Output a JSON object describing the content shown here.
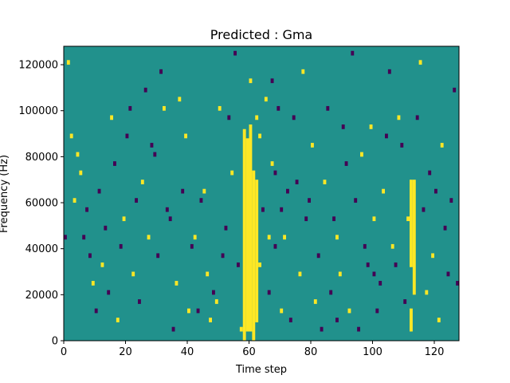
{
  "chart_data": {
    "type": "heatmap",
    "title": "Predicted : Gma",
    "xlabel": "Time step",
    "ylabel": "Frequency (Hz)",
    "xlim": [
      0,
      128
    ],
    "ylim": [
      0,
      128000
    ],
    "xticks": [
      0,
      20,
      40,
      60,
      80,
      100,
      120
    ],
    "yticks": [
      0,
      20000,
      40000,
      60000,
      80000,
      100000,
      120000
    ],
    "xtick_labels": [
      "0",
      "20",
      "40",
      "60",
      "80",
      "100",
      "120"
    ],
    "ytick_labels": [
      "0",
      "20000",
      "40000",
      "60000",
      "80000",
      "100000",
      "120000"
    ],
    "n_time_steps": 128,
    "n_freq_bins": 64,
    "background_value": 0,
    "values_legend": {
      "-1": "low",
      "0": "neutral",
      "1": "high"
    },
    "colormap": {
      "-1": "#440154",
      "0": "#21918c",
      "1": "#fde725"
    },
    "grid": false,
    "high_columns": [
      {
        "x": 58,
        "y0": 0,
        "y1": 92000
      },
      {
        "x": 59,
        "y0": 4000,
        "y1": 88000
      },
      {
        "x": 60,
        "y0": 4000,
        "y1": 94000
      },
      {
        "x": 61,
        "y0": 0,
        "y1": 74000
      },
      {
        "x": 62,
        "y0": 8000,
        "y1": 70000
      },
      {
        "x": 112,
        "y0": 32000,
        "y1": 70000
      },
      {
        "x": 113,
        "y0": 20000,
        "y1": 70000
      },
      {
        "x": 112,
        "y0": 4000,
        "y1": 14000
      }
    ],
    "cells": [
      {
        "x": 1,
        "y": 120000,
        "v": 1
      },
      {
        "x": 2,
        "y": 88000,
        "v": 1
      },
      {
        "x": 3,
        "y": 60000,
        "v": 1
      },
      {
        "x": 4,
        "y": 80000,
        "v": 1
      },
      {
        "x": 5,
        "y": 72000,
        "v": 1
      },
      {
        "x": 6,
        "y": 44000,
        "v": -1
      },
      {
        "x": 7,
        "y": 56000,
        "v": -1
      },
      {
        "x": 8,
        "y": 36000,
        "v": -1
      },
      {
        "x": 9,
        "y": 24000,
        "v": 1
      },
      {
        "x": 10,
        "y": 12000,
        "v": -1
      },
      {
        "x": 11,
        "y": 64000,
        "v": -1
      },
      {
        "x": 12,
        "y": 32000,
        "v": 1
      },
      {
        "x": 13,
        "y": 48000,
        "v": -1
      },
      {
        "x": 14,
        "y": 20000,
        "v": -1
      },
      {
        "x": 15,
        "y": 96000,
        "v": 1
      },
      {
        "x": 16,
        "y": 76000,
        "v": -1
      },
      {
        "x": 17,
        "y": 8000,
        "v": 1
      },
      {
        "x": 18,
        "y": 40000,
        "v": -1
      },
      {
        "x": 19,
        "y": 52000,
        "v": 1
      },
      {
        "x": 20,
        "y": 88000,
        "v": -1
      },
      {
        "x": 22,
        "y": 28000,
        "v": 1
      },
      {
        "x": 24,
        "y": 16000,
        "v": -1
      },
      {
        "x": 25,
        "y": 68000,
        "v": 1
      },
      {
        "x": 26,
        "y": 108000,
        "v": -1
      },
      {
        "x": 27,
        "y": 44000,
        "v": 1
      },
      {
        "x": 28,
        "y": 84000,
        "v": -1
      },
      {
        "x": 30,
        "y": 36000,
        "v": -1
      },
      {
        "x": 32,
        "y": 100000,
        "v": 1
      },
      {
        "x": 34,
        "y": 52000,
        "v": -1
      },
      {
        "x": 36,
        "y": 24000,
        "v": 1
      },
      {
        "x": 38,
        "y": 64000,
        "v": -1
      },
      {
        "x": 40,
        "y": 12000,
        "v": 1
      },
      {
        "x": 42,
        "y": 44000,
        "v": 1
      },
      {
        "x": 44,
        "y": 60000,
        "v": -1
      },
      {
        "x": 46,
        "y": 28000,
        "v": 1
      },
      {
        "x": 47,
        "y": 8000,
        "v": 1
      },
      {
        "x": 48,
        "y": 20000,
        "v": -1
      },
      {
        "x": 50,
        "y": 100000,
        "v": 1
      },
      {
        "x": 52,
        "y": 48000,
        "v": -1
      },
      {
        "x": 54,
        "y": 72000,
        "v": 1
      },
      {
        "x": 56,
        "y": 32000,
        "v": -1
      },
      {
        "x": 64,
        "y": 56000,
        "v": -1
      },
      {
        "x": 65,
        "y": 104000,
        "v": 1
      },
      {
        "x": 66,
        "y": 20000,
        "v": -1
      },
      {
        "x": 67,
        "y": 76000,
        "v": 1
      },
      {
        "x": 68,
        "y": 40000,
        "v": -1
      },
      {
        "x": 69,
        "y": 100000,
        "v": -1
      },
      {
        "x": 70,
        "y": 12000,
        "v": 1
      },
      {
        "x": 72,
        "y": 64000,
        "v": -1
      },
      {
        "x": 74,
        "y": 96000,
        "v": -1
      },
      {
        "x": 76,
        "y": 28000,
        "v": 1
      },
      {
        "x": 78,
        "y": 52000,
        "v": -1
      },
      {
        "x": 80,
        "y": 84000,
        "v": 1
      },
      {
        "x": 82,
        "y": 36000,
        "v": -1
      },
      {
        "x": 83,
        "y": 4000,
        "v": -1
      },
      {
        "x": 84,
        "y": 68000,
        "v": 1
      },
      {
        "x": 86,
        "y": 20000,
        "v": -1
      },
      {
        "x": 88,
        "y": 44000,
        "v": 1
      },
      {
        "x": 90,
        "y": 92000,
        "v": -1
      },
      {
        "x": 92,
        "y": 12000,
        "v": 1
      },
      {
        "x": 94,
        "y": 60000,
        "v": -1
      },
      {
        "x": 96,
        "y": 80000,
        "v": 1
      },
      {
        "x": 98,
        "y": 32000,
        "v": -1
      },
      {
        "x": 100,
        "y": 52000,
        "v": 1
      },
      {
        "x": 102,
        "y": 24000,
        "v": -1
      },
      {
        "x": 104,
        "y": 88000,
        "v": -1
      },
      {
        "x": 106,
        "y": 40000,
        "v": 1
      },
      {
        "x": 108,
        "y": 96000,
        "v": 1
      },
      {
        "x": 110,
        "y": 16000,
        "v": -1
      },
      {
        "x": 115,
        "y": 120000,
        "v": 1
      },
      {
        "x": 116,
        "y": 56000,
        "v": -1
      },
      {
        "x": 117,
        "y": 20000,
        "v": 1
      },
      {
        "x": 118,
        "y": 72000,
        "v": -1
      },
      {
        "x": 119,
        "y": 36000,
        "v": 1
      },
      {
        "x": 120,
        "y": 64000,
        "v": -1
      },
      {
        "x": 121,
        "y": 8000,
        "v": 1
      },
      {
        "x": 122,
        "y": 84000,
        "v": 1
      },
      {
        "x": 123,
        "y": 48000,
        "v": -1
      },
      {
        "x": 124,
        "y": 28000,
        "v": -1
      },
      {
        "x": 125,
        "y": 60000,
        "v": -1
      },
      {
        "x": 126,
        "y": 108000,
        "v": -1
      },
      {
        "x": 127,
        "y": 24000,
        "v": -1
      },
      {
        "x": 45,
        "y": 64000,
        "v": 1
      },
      {
        "x": 43,
        "y": 12000,
        "v": -1
      },
      {
        "x": 33,
        "y": 56000,
        "v": -1
      },
      {
        "x": 29,
        "y": 80000,
        "v": -1
      },
      {
        "x": 31,
        "y": 116000,
        "v": -1
      },
      {
        "x": 37,
        "y": 104000,
        "v": 1
      },
      {
        "x": 41,
        "y": 40000,
        "v": -1
      },
      {
        "x": 49,
        "y": 16000,
        "v": 1
      },
      {
        "x": 51,
        "y": 36000,
        "v": -1
      },
      {
        "x": 53,
        "y": 96000,
        "v": -1
      },
      {
        "x": 55,
        "y": 124000,
        "v": -1
      },
      {
        "x": 57,
        "y": 4000,
        "v": 1
      },
      {
        "x": 63,
        "y": 88000,
        "v": 1
      },
      {
        "x": 71,
        "y": 44000,
        "v": 1
      },
      {
        "x": 73,
        "y": 8000,
        "v": -1
      },
      {
        "x": 75,
        "y": 68000,
        "v": -1
      },
      {
        "x": 77,
        "y": 116000,
        "v": 1
      },
      {
        "x": 79,
        "y": 60000,
        "v": -1
      },
      {
        "x": 81,
        "y": 16000,
        "v": 1
      },
      {
        "x": 85,
        "y": 100000,
        "v": -1
      },
      {
        "x": 87,
        "y": 52000,
        "v": -1
      },
      {
        "x": 89,
        "y": 28000,
        "v": 1
      },
      {
        "x": 91,
        "y": 76000,
        "v": -1
      },
      {
        "x": 93,
        "y": 124000,
        "v": -1
      },
      {
        "x": 95,
        "y": 4000,
        "v": -1
      },
      {
        "x": 97,
        "y": 40000,
        "v": -1
      },
      {
        "x": 99,
        "y": 92000,
        "v": 1
      },
      {
        "x": 101,
        "y": 12000,
        "v": -1
      },
      {
        "x": 103,
        "y": 64000,
        "v": 1
      },
      {
        "x": 105,
        "y": 116000,
        "v": -1
      },
      {
        "x": 107,
        "y": 32000,
        "v": -1
      },
      {
        "x": 109,
        "y": 84000,
        "v": -1
      },
      {
        "x": 111,
        "y": 52000,
        "v": 1
      },
      {
        "x": 114,
        "y": 96000,
        "v": -1
      },
      {
        "x": 0,
        "y": 44000,
        "v": -1
      },
      {
        "x": 21,
        "y": 100000,
        "v": -1
      },
      {
        "x": 23,
        "y": 60000,
        "v": -1
      },
      {
        "x": 35,
        "y": 4000,
        "v": -1
      },
      {
        "x": 39,
        "y": 88000,
        "v": 1
      },
      {
        "x": 100,
        "y": 28000,
        "v": -1
      },
      {
        "x": 88,
        "y": 8000,
        "v": -1
      },
      {
        "x": 60,
        "y": 112000,
        "v": 1
      },
      {
        "x": 62,
        "y": 96000,
        "v": 1
      },
      {
        "x": 63,
        "y": 32000,
        "v": 1
      },
      {
        "x": 66,
        "y": 44000,
        "v": 1
      },
      {
        "x": 68,
        "y": 72000,
        "v": -1
      },
      {
        "x": 70,
        "y": 56000,
        "v": -1
      },
      {
        "x": 67,
        "y": 112000,
        "v": -1
      }
    ]
  }
}
